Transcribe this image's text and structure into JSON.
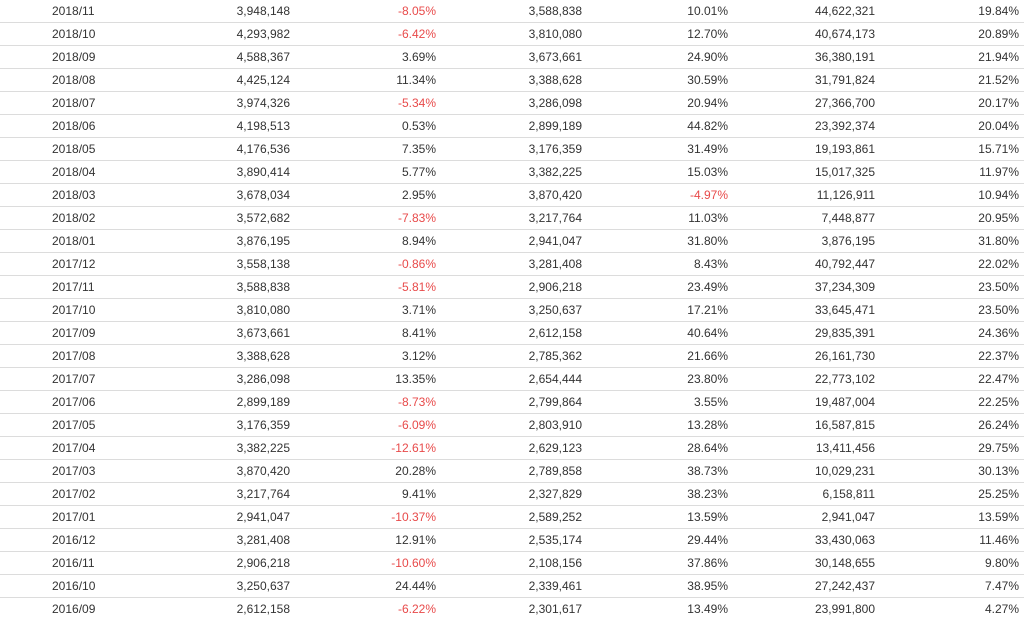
{
  "colors": {
    "text": "#333333",
    "negative": "#e84a4a",
    "border": "#dcdcdc"
  },
  "table": {
    "rows": [
      [
        "2018/11",
        "3,948,148",
        "-8.05%",
        "3,588,838",
        "10.01%",
        "44,622,321",
        "19.84%"
      ],
      [
        "2018/10",
        "4,293,982",
        "-6.42%",
        "3,810,080",
        "12.70%",
        "40,674,173",
        "20.89%"
      ],
      [
        "2018/09",
        "4,588,367",
        "3.69%",
        "3,673,661",
        "24.90%",
        "36,380,191",
        "21.94%"
      ],
      [
        "2018/08",
        "4,425,124",
        "11.34%",
        "3,388,628",
        "30.59%",
        "31,791,824",
        "21.52%"
      ],
      [
        "2018/07",
        "3,974,326",
        "-5.34%",
        "3,286,098",
        "20.94%",
        "27,366,700",
        "20.17%"
      ],
      [
        "2018/06",
        "4,198,513",
        "0.53%",
        "2,899,189",
        "44.82%",
        "23,392,374",
        "20.04%"
      ],
      [
        "2018/05",
        "4,176,536",
        "7.35%",
        "3,176,359",
        "31.49%",
        "19,193,861",
        "15.71%"
      ],
      [
        "2018/04",
        "3,890,414",
        "5.77%",
        "3,382,225",
        "15.03%",
        "15,017,325",
        "11.97%"
      ],
      [
        "2018/03",
        "3,678,034",
        "2.95%",
        "3,870,420",
        "-4.97%",
        "11,126,911",
        "10.94%"
      ],
      [
        "2018/02",
        "3,572,682",
        "-7.83%",
        "3,217,764",
        "11.03%",
        "7,448,877",
        "20.95%"
      ],
      [
        "2018/01",
        "3,876,195",
        "8.94%",
        "2,941,047",
        "31.80%",
        "3,876,195",
        "31.80%"
      ],
      [
        "2017/12",
        "3,558,138",
        "-0.86%",
        "3,281,408",
        "8.43%",
        "40,792,447",
        "22.02%"
      ],
      [
        "2017/11",
        "3,588,838",
        "-5.81%",
        "2,906,218",
        "23.49%",
        "37,234,309",
        "23.50%"
      ],
      [
        "2017/10",
        "3,810,080",
        "3.71%",
        "3,250,637",
        "17.21%",
        "33,645,471",
        "23.50%"
      ],
      [
        "2017/09",
        "3,673,661",
        "8.41%",
        "2,612,158",
        "40.64%",
        "29,835,391",
        "24.36%"
      ],
      [
        "2017/08",
        "3,388,628",
        "3.12%",
        "2,785,362",
        "21.66%",
        "26,161,730",
        "22.37%"
      ],
      [
        "2017/07",
        "3,286,098",
        "13.35%",
        "2,654,444",
        "23.80%",
        "22,773,102",
        "22.47%"
      ],
      [
        "2017/06",
        "2,899,189",
        "-8.73%",
        "2,799,864",
        "3.55%",
        "19,487,004",
        "22.25%"
      ],
      [
        "2017/05",
        "3,176,359",
        "-6.09%",
        "2,803,910",
        "13.28%",
        "16,587,815",
        "26.24%"
      ],
      [
        "2017/04",
        "3,382,225",
        "-12.61%",
        "2,629,123",
        "28.64%",
        "13,411,456",
        "29.75%"
      ],
      [
        "2017/03",
        "3,870,420",
        "20.28%",
        "2,789,858",
        "38.73%",
        "10,029,231",
        "30.13%"
      ],
      [
        "2017/02",
        "3,217,764",
        "9.41%",
        "2,327,829",
        "38.23%",
        "6,158,811",
        "25.25%"
      ],
      [
        "2017/01",
        "2,941,047",
        "-10.37%",
        "2,589,252",
        "13.59%",
        "2,941,047",
        "13.59%"
      ],
      [
        "2016/12",
        "3,281,408",
        "12.91%",
        "2,535,174",
        "29.44%",
        "33,430,063",
        "11.46%"
      ],
      [
        "2016/11",
        "2,906,218",
        "-10.60%",
        "2,108,156",
        "37.86%",
        "30,148,655",
        "9.80%"
      ],
      [
        "2016/10",
        "3,250,637",
        "24.44%",
        "2,339,461",
        "38.95%",
        "27,242,437",
        "7.47%"
      ],
      [
        "2016/09",
        "2,612,158",
        "-6.22%",
        "2,301,617",
        "13.49%",
        "23,991,800",
        "4.27%"
      ]
    ]
  }
}
